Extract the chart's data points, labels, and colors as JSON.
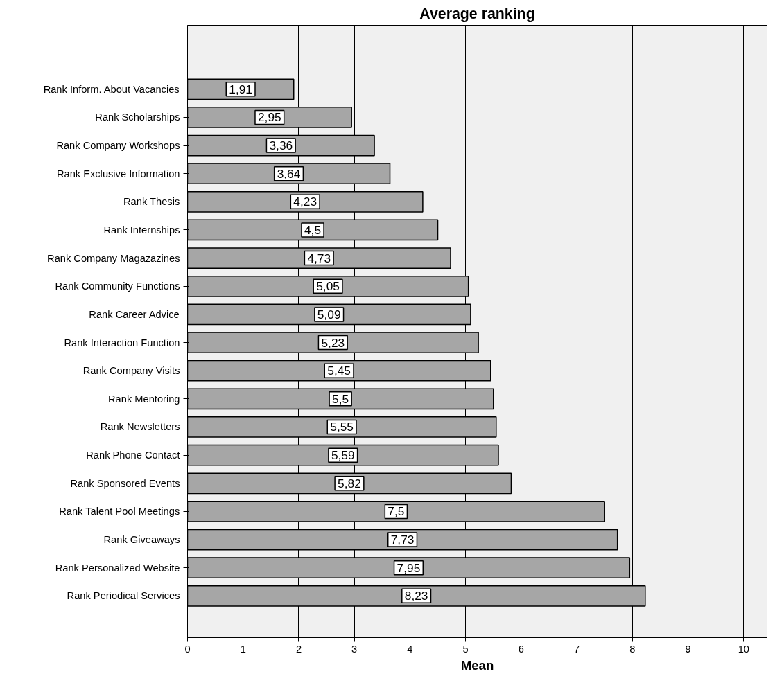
{
  "chart_data": {
    "type": "bar",
    "orientation": "horizontal",
    "title": "Average ranking",
    "xlabel": "Mean",
    "categories": [
      "Rank Inform. About Vacancies",
      "Rank Scholarships",
      "Rank Company Workshops",
      "Rank Exclusive Information",
      "Rank Thesis",
      "Rank Internships",
      "Rank Company Magazazines",
      "Rank Community Functions",
      "Rank Career Advice",
      "Rank Interaction Function",
      "Rank Company Visits",
      "Rank Mentoring",
      "Rank Newsletters",
      "Rank Phone Contact",
      "Rank Sponsored Events",
      "Rank Talent Pool Meetings",
      "Rank Giveaways",
      "Rank Personalized Website",
      "Rank Periodical Services"
    ],
    "values": [
      1.91,
      2.95,
      3.36,
      3.64,
      4.23,
      4.5,
      4.73,
      5.05,
      5.09,
      5.23,
      5.45,
      5.5,
      5.55,
      5.59,
      5.82,
      7.5,
      7.73,
      7.95,
      8.23
    ],
    "value_labels": [
      "1,91",
      "2,95",
      "3,36",
      "3,64",
      "4,23",
      "4,5",
      "4,73",
      "5,05",
      "5,09",
      "5,23",
      "5,45",
      "5,5",
      "5,55",
      "5,59",
      "5,82",
      "7,5",
      "7,73",
      "7,95",
      "8,23"
    ],
    "color": "#a6a6a6",
    "xlim": [
      0,
      10.42
    ],
    "xticks": [
      0,
      1,
      2,
      3,
      4,
      5,
      6,
      7,
      8,
      9,
      10
    ],
    "grid": "x"
  }
}
